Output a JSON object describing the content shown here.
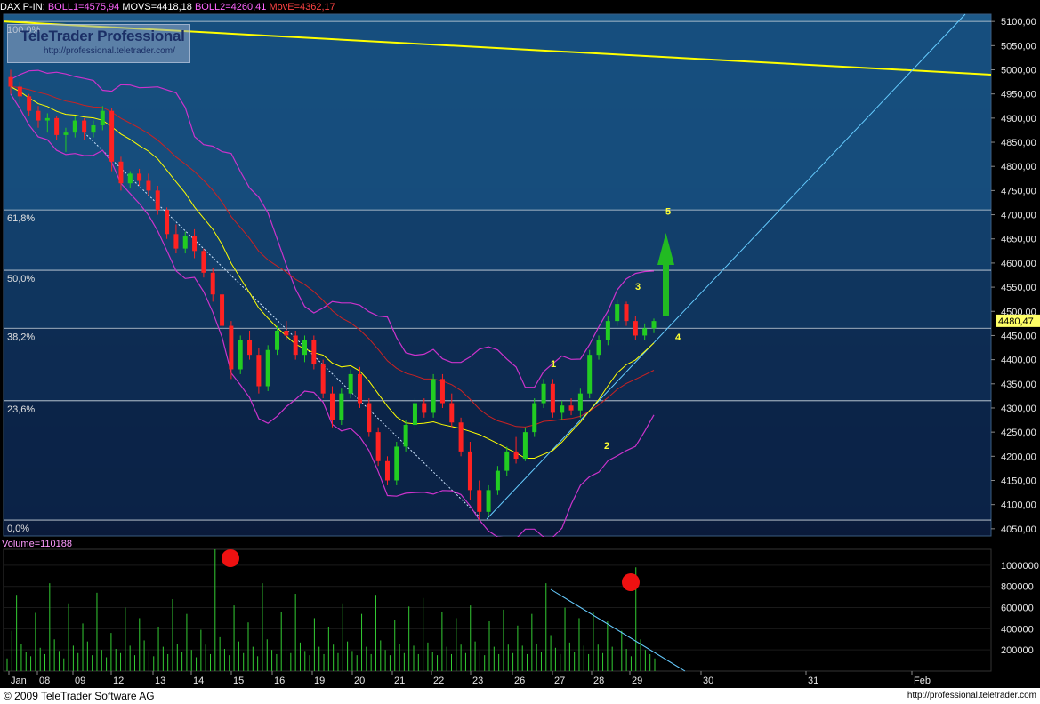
{
  "header": {
    "symbol": "DAX P-IN",
    "items": [
      {
        "text": "BOLL1=4575,94",
        "color": "#ff66ff"
      },
      {
        "text": "MOVS=4418,18",
        "color": "#ffffff"
      },
      {
        "text": "BOLL2=4260,41",
        "color": "#ff66ff"
      },
      {
        "text": "MovE=4362,17",
        "color": "#ff4444"
      }
    ]
  },
  "watermark": {
    "title": "TeleTrader Professional",
    "url": "http://professional.teletrader.com/"
  },
  "volume_label": "Volume=110188",
  "footer": {
    "copyright": "© 2009 TeleTrader Software AG",
    "site": "http://professional.teletrader.com"
  },
  "last_price": "4480,47",
  "colors": {
    "up": "#22cc22",
    "down": "#ff2222",
    "ma_yellow": "#ffff00",
    "ma_red": "#cc2222",
    "boll": "#cc33cc",
    "trend_cyan": "#66ccff",
    "arrow": "#22bb22"
  },
  "chart_data": [
    {
      "type": "candlestick",
      "price_ticks": [
        "5100,00",
        "5050,00",
        "5000,00",
        "4950,00",
        "4900,00",
        "4850,00",
        "4800,00",
        "4750,00",
        "4700,00",
        "4650,00",
        "4600,00",
        "4550,00",
        "4500,00",
        "4450,00",
        "4400,00",
        "4350,00",
        "4300,00",
        "4250,00",
        "4200,00",
        "4150,00",
        "4100,00",
        "4050,00"
      ],
      "ylim": [
        4035,
        5115
      ],
      "x_labels": [
        "Jan",
        "08",
        "09",
        "12",
        "13",
        "14",
        "15",
        "16",
        "19",
        "20",
        "21",
        "22",
        "23",
        "26",
        "27",
        "28",
        "29",
        "30",
        "31",
        "Feb"
      ],
      "fib_levels": [
        {
          "label": "100,0%",
          "value": 5100
        },
        {
          "label": "61,8%",
          "value": 4710
        },
        {
          "label": "50,0%",
          "value": 4585
        },
        {
          "label": "38,2%",
          "value": 4465
        },
        {
          "label": "23,6%",
          "value": 4315
        },
        {
          "label": "0,0%",
          "value": 4068
        }
      ],
      "wave_labels": [
        "1",
        "2",
        "3",
        "4",
        "5"
      ],
      "candles": [
        [
          4985,
          5000,
          4950,
          4965
        ],
        [
          4965,
          4975,
          4930,
          4945
        ],
        [
          4945,
          4950,
          4905,
          4915
        ],
        [
          4915,
          4925,
          4880,
          4895
        ],
        [
          4895,
          4910,
          4870,
          4900
        ],
        [
          4900,
          4905,
          4855,
          4865
        ],
        [
          4865,
          4880,
          4830,
          4870
        ],
        [
          4870,
          4905,
          4860,
          4895
        ],
        [
          4895,
          4900,
          4855,
          4870
        ],
        [
          4870,
          4895,
          4860,
          4885
        ],
        [
          4885,
          4925,
          4875,
          4915
        ],
        [
          4915,
          4920,
          4790,
          4810
        ],
        [
          4810,
          4820,
          4750,
          4765
        ],
        [
          4765,
          4790,
          4755,
          4785
        ],
        [
          4785,
          4795,
          4760,
          4770
        ],
        [
          4770,
          4785,
          4740,
          4750
        ],
        [
          4750,
          4760,
          4700,
          4710
        ],
        [
          4710,
          4715,
          4650,
          4660
        ],
        [
          4660,
          4680,
          4620,
          4630
        ],
        [
          4630,
          4665,
          4620,
          4655
        ],
        [
          4655,
          4670,
          4610,
          4625
        ],
        [
          4625,
          4630,
          4570,
          4580
        ],
        [
          4580,
          4590,
          4520,
          4535
        ],
        [
          4535,
          4545,
          4460,
          4470
        ],
        [
          4470,
          4480,
          4360,
          4380
        ],
        [
          4380,
          4450,
          4370,
          4440
        ],
        [
          4440,
          4460,
          4400,
          4410
        ],
        [
          4410,
          4425,
          4330,
          4345
        ],
        [
          4345,
          4430,
          4335,
          4420
        ],
        [
          4420,
          4470,
          4410,
          4460
        ],
        [
          4460,
          4480,
          4440,
          4450
        ],
        [
          4450,
          4460,
          4400,
          4410
        ],
        [
          4410,
          4450,
          4395,
          4440
        ],
        [
          4440,
          4450,
          4380,
          4390
        ],
        [
          4390,
          4400,
          4320,
          4330
        ],
        [
          4330,
          4345,
          4260,
          4275
        ],
        [
          4275,
          4340,
          4265,
          4330
        ],
        [
          4330,
          4380,
          4320,
          4370
        ],
        [
          4370,
          4385,
          4300,
          4310
        ],
        [
          4310,
          4320,
          4240,
          4250
        ],
        [
          4250,
          4260,
          4180,
          4190
        ],
        [
          4190,
          4200,
          4140,
          4150
        ],
        [
          4150,
          4230,
          4140,
          4220
        ],
        [
          4220,
          4275,
          4210,
          4265
        ],
        [
          4265,
          4320,
          4255,
          4310
        ],
        [
          4310,
          4320,
          4280,
          4290
        ],
        [
          4290,
          4370,
          4280,
          4360
        ],
        [
          4360,
          4370,
          4300,
          4310
        ],
        [
          4310,
          4330,
          4260,
          4270
        ],
        [
          4270,
          4280,
          4200,
          4210
        ],
        [
          4210,
          4230,
          4110,
          4130
        ],
        [
          4130,
          4150,
          4068,
          4085
        ],
        [
          4085,
          4140,
          4075,
          4130
        ],
        [
          4130,
          4180,
          4120,
          4170
        ],
        [
          4170,
          4220,
          4160,
          4210
        ],
        [
          4210,
          4240,
          4185,
          4195
        ],
        [
          4195,
          4260,
          4190,
          4250
        ],
        [
          4250,
          4320,
          4240,
          4310
        ],
        [
          4310,
          4360,
          4300,
          4350
        ],
        [
          4350,
          4360,
          4280,
          4290
        ],
        [
          4290,
          4315,
          4275,
          4305
        ],
        [
          4305,
          4320,
          4285,
          4295
        ],
        [
          4295,
          4340,
          4280,
          4330
        ],
        [
          4330,
          4420,
          4320,
          4410
        ],
        [
          4410,
          4450,
          4400,
          4440
        ],
        [
          4440,
          4490,
          4430,
          4480
        ],
        [
          4480,
          4525,
          4470,
          4515
        ],
        [
          4515,
          4520,
          4470,
          4480
        ],
        [
          4480,
          4490,
          4440,
          4450
        ],
        [
          4450,
          4475,
          4440,
          4465
        ],
        [
          4465,
          4485,
          4455,
          4480
        ]
      ]
    },
    {
      "type": "bar",
      "series_name": "Volume",
      "y_ticks": [
        "1000000",
        "800000",
        "600000",
        "400000",
        "200000"
      ],
      "ylim": [
        0,
        1150000
      ],
      "values": [
        120000,
        380000,
        720000,
        260000,
        180000,
        140000,
        550000,
        220000,
        160000,
        830000,
        300000,
        190000,
        120000,
        640000,
        240000,
        170000,
        450000,
        280000,
        150000,
        740000,
        200000,
        130000,
        360000,
        210000,
        170000,
        600000,
        240000,
        150000,
        500000,
        290000,
        190000,
        140000,
        420000,
        230000,
        160000,
        680000,
        260000,
        180000,
        540000,
        200000,
        130000,
        390000,
        250000,
        160000,
        1150000,
        320000,
        210000,
        150000,
        620000,
        280000,
        170000,
        460000,
        230000,
        140000,
        830000,
        300000,
        200000,
        160000,
        560000,
        240000,
        170000,
        730000,
        270000,
        190000,
        150000,
        500000,
        230000,
        160000,
        420000,
        250000,
        170000,
        640000,
        280000,
        190000,
        150000,
        540000,
        230000,
        160000,
        720000,
        290000,
        200000,
        150000,
        480000,
        260000,
        170000,
        610000,
        240000,
        160000,
        690000,
        270000,
        180000,
        150000,
        560000,
        230000,
        160000,
        500000,
        250000,
        170000,
        620000,
        280000,
        190000,
        150000,
        470000,
        230000,
        160000,
        580000,
        250000,
        170000,
        430000,
        240000,
        160000,
        540000,
        260000,
        180000,
        830000,
        340000,
        220000,
        160000,
        600000,
        270000,
        180000,
        500000,
        240000,
        160000,
        560000,
        250000,
        170000,
        470000,
        230000,
        150000,
        380000,
        210000,
        140000,
        980000,
        300000,
        200000,
        160000,
        120000
      ]
    }
  ]
}
